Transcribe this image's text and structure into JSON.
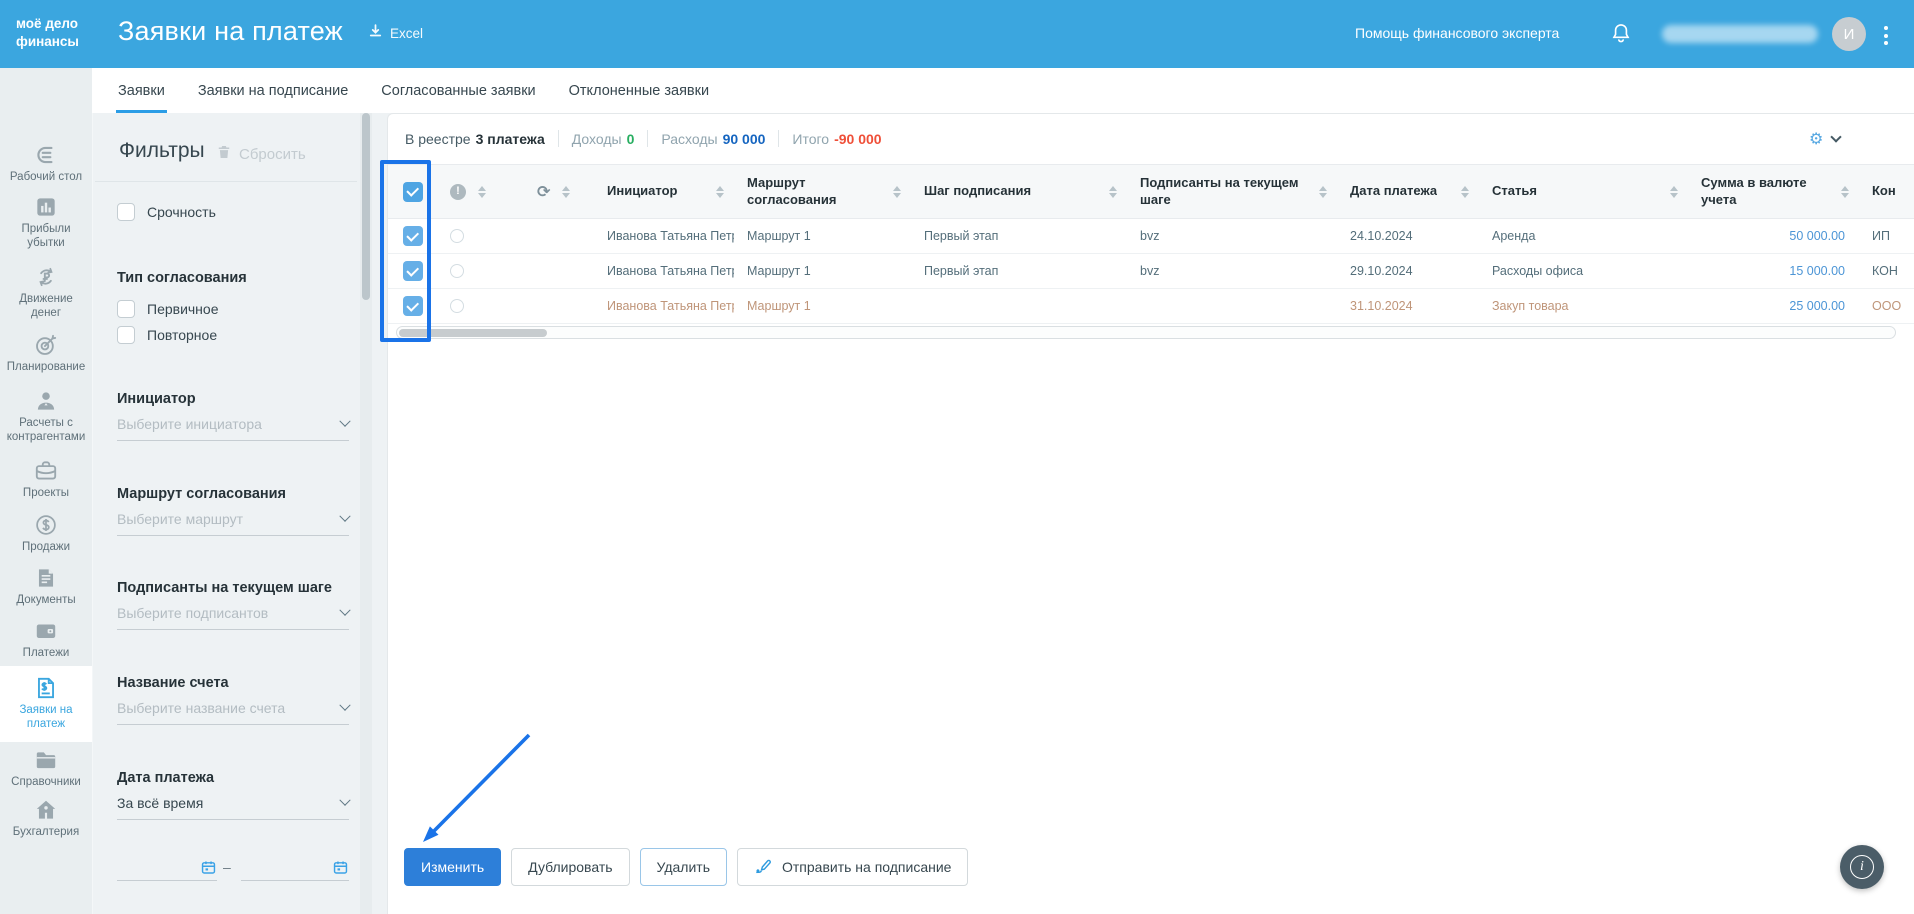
{
  "header": {
    "logo_line1": "моё дело",
    "logo_line2": "финансы",
    "title": "Заявки на платеж",
    "excel_label": "Excel",
    "help_link": "Помощь финансового эксперта",
    "user_initial": "И"
  },
  "tabs": [
    {
      "id": "requests",
      "label": "Заявки",
      "active": true
    },
    {
      "id": "for-signing",
      "label": "Заявки на подписание",
      "active": false
    },
    {
      "id": "approved",
      "label": "Согласованные заявки",
      "active": false
    },
    {
      "id": "rejected",
      "label": "Отклоненные заявки",
      "active": false
    }
  ],
  "sidebar": {
    "items": [
      {
        "id": "desktop",
        "label": "Рабочий стол",
        "icon": "desk-icon",
        "active": false
      },
      {
        "id": "profit-loss",
        "label": "Прибыли убытки",
        "icon": "bar-chart-icon",
        "active": false
      },
      {
        "id": "cash-flow",
        "label": "Движение денег",
        "icon": "money-flow-icon",
        "active": false
      },
      {
        "id": "planning",
        "label": "Планирование",
        "icon": "target-icon",
        "active": false
      },
      {
        "id": "counterparties",
        "label": "Расчеты с контрагентами",
        "icon": "person-icon",
        "active": false
      },
      {
        "id": "projects",
        "label": "Проекты",
        "icon": "briefcase-icon",
        "active": false
      },
      {
        "id": "sales",
        "label": "Продажи",
        "icon": "dollar-circle-icon",
        "active": false
      },
      {
        "id": "documents",
        "label": "Документы",
        "icon": "document-icon",
        "active": false
      },
      {
        "id": "payments",
        "label": "Платежи",
        "icon": "wallet-icon",
        "active": false
      },
      {
        "id": "payment-requests",
        "label": "Заявки на платеж",
        "icon": "invoice-icon",
        "active": true
      },
      {
        "id": "directories",
        "label": "Справочники",
        "icon": "folder-icon",
        "active": false
      },
      {
        "id": "accounting",
        "label": "Бухгалтерия",
        "icon": "home-icon",
        "active": false
      }
    ]
  },
  "filters": {
    "heading": "Фильтры",
    "reset_label": "Сбросить",
    "urgency_label": "Срочность",
    "approval_type": {
      "label": "Тип согласования",
      "options": [
        "Первичное",
        "Повторное"
      ]
    },
    "selects": [
      {
        "id": "initiator",
        "label": "Инициатор",
        "placeholder": "Выберите инициатора"
      },
      {
        "id": "route",
        "label": "Маршрут согласования",
        "placeholder": "Выберите маршрут"
      },
      {
        "id": "signers",
        "label": "Подписанты на текущем шаге",
        "placeholder": "Выберите подписантов"
      },
      {
        "id": "account-name",
        "label": "Название счета",
        "placeholder": "Выберите название счета"
      }
    ],
    "payment_date": {
      "label": "Дата платежа",
      "value": "За всё время"
    }
  },
  "summary": {
    "registry_label": "В реестре",
    "registry_value": "3 платежа",
    "income_label": "Доходы",
    "income_value": "0",
    "expense_label": "Расходы",
    "expense_value": "90 000",
    "total_label": "Итого",
    "total_value": "-90 000"
  },
  "table": {
    "columns": [
      {
        "key": "initiator",
        "label": "Инициатор",
        "sortable": true
      },
      {
        "key": "route",
        "label": "Маршрут согласования",
        "sortable": true
      },
      {
        "key": "step",
        "label": "Шаг подписания",
        "sortable": true
      },
      {
        "key": "signers",
        "label": "Подписанты на текущем шаге",
        "sortable": true
      },
      {
        "key": "date",
        "label": "Дата платежа",
        "sortable": true
      },
      {
        "key": "category",
        "label": "Статья",
        "sortable": true
      },
      {
        "key": "amount",
        "label": "Сумма в валюте учета",
        "sortable": true
      },
      {
        "key": "counterparty",
        "label": "Кон",
        "sortable": false
      }
    ],
    "rows": [
      {
        "checked": true,
        "future": false,
        "cells": [
          "Иванова Татьяна Петровн",
          "Маршрут 1",
          "Первый этап",
          "bvz",
          "24.10.2024",
          "Аренда",
          "50 000.00",
          "ИП"
        ]
      },
      {
        "checked": true,
        "future": false,
        "cells": [
          "Иванова Татьяна Петровн",
          "Маршрут 1",
          "Первый этап",
          "bvz",
          "29.10.2024",
          "Расходы офиса",
          "15 000.00",
          "КОН"
        ]
      },
      {
        "checked": true,
        "future": true,
        "cells": [
          "Иванова Татьяна Петровн",
          "Маршрут 1",
          "",
          "",
          "31.10.2024",
          "Закуп товара",
          "25 000.00",
          "ООО"
        ]
      }
    ]
  },
  "actions": [
    {
      "id": "edit",
      "label": "Изменить",
      "style": "primary"
    },
    {
      "id": "duplicate",
      "label": "Дублировать",
      "style": "default"
    },
    {
      "id": "delete",
      "label": "Удалить",
      "style": "outline-blue"
    },
    {
      "id": "send-to-sign",
      "label": "Отправить на подписание",
      "style": "default",
      "icon": "sign-icon"
    }
  ],
  "colors": {
    "header_blue": "#3BA6DF",
    "accent_blue": "#3AA6DF",
    "annotation_blue": "#1A73E8",
    "income_green": "#27AE60",
    "expense_blue": "#1565C0",
    "negative_red": "#EF4F38",
    "link_blue": "#4C95D6",
    "future_row_text": "#BF9579"
  }
}
